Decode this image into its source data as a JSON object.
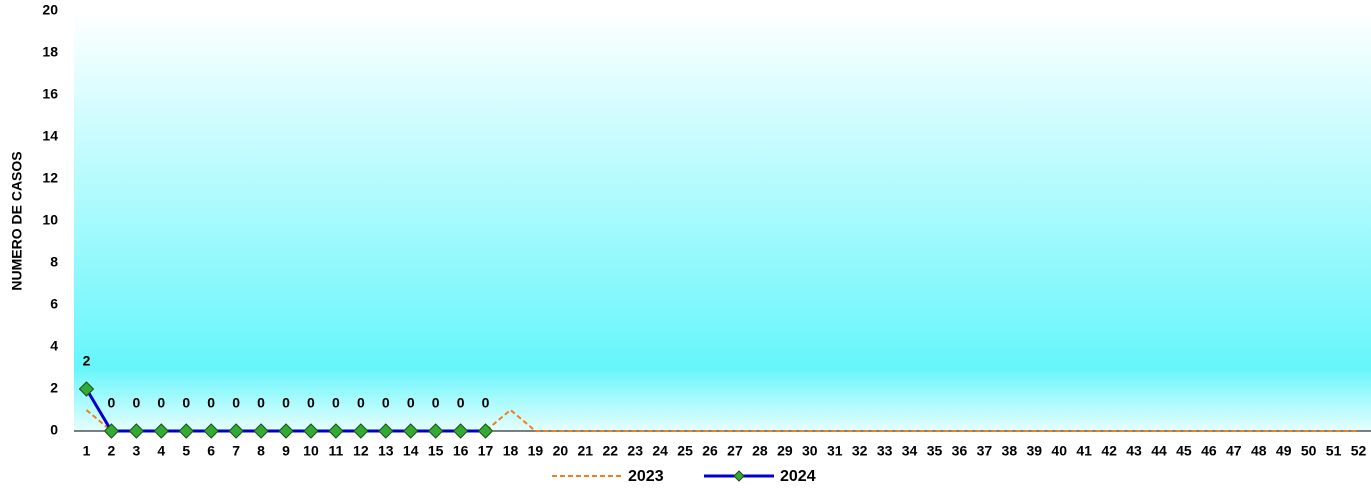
{
  "chart_data": {
    "type": "line",
    "y_label": "NUMERO DE CASOS",
    "categories": [
      "1",
      "2",
      "3",
      "4",
      "5",
      "6",
      "7",
      "8",
      "9",
      "10",
      "11",
      "12",
      "13",
      "14",
      "15",
      "16",
      "17",
      "18",
      "19",
      "20",
      "21",
      "22",
      "23",
      "24",
      "25",
      "26",
      "27",
      "28",
      "29",
      "30",
      "31",
      "32",
      "33",
      "34",
      "35",
      "36",
      "37",
      "38",
      "39",
      "40",
      "41",
      "42",
      "43",
      "44",
      "45",
      "46",
      "47",
      "48",
      "49",
      "50",
      "51",
      "52"
    ],
    "series": [
      {
        "name": "2023",
        "color": "#f07f1e",
        "dashed": true,
        "marker": false,
        "data_labels": false,
        "values": [
          1,
          0,
          0,
          0,
          0,
          0,
          0,
          0,
          0,
          0,
          0,
          0,
          0,
          0,
          0,
          0,
          0,
          1,
          0,
          0,
          0,
          0,
          0,
          0,
          0,
          0,
          0,
          0,
          0,
          0,
          0,
          0,
          0,
          0,
          0,
          0,
          0,
          0,
          0,
          0,
          0,
          0,
          0,
          0,
          0,
          0,
          0,
          0,
          0,
          0,
          0,
          0
        ]
      },
      {
        "name": "2024",
        "color": "#0000cc",
        "dashed": false,
        "marker": true,
        "marker_color": "#33aa33",
        "data_labels": true,
        "values": [
          2,
          0,
          0,
          0,
          0,
          0,
          0,
          0,
          0,
          0,
          0,
          0,
          0,
          0,
          0,
          0,
          0,
          null,
          null,
          null,
          null,
          null,
          null,
          null,
          null,
          null,
          null,
          null,
          null,
          null,
          null,
          null,
          null,
          null,
          null,
          null,
          null,
          null,
          null,
          null,
          null,
          null,
          null,
          null,
          null,
          null,
          null,
          null,
          null,
          null,
          null,
          null
        ]
      }
    ],
    "ylim": [
      0,
      20
    ],
    "yticks": [
      0,
      2,
      4,
      6,
      8,
      10,
      12,
      14,
      16,
      18,
      20
    ],
    "grid": false,
    "legend": "bottom"
  }
}
